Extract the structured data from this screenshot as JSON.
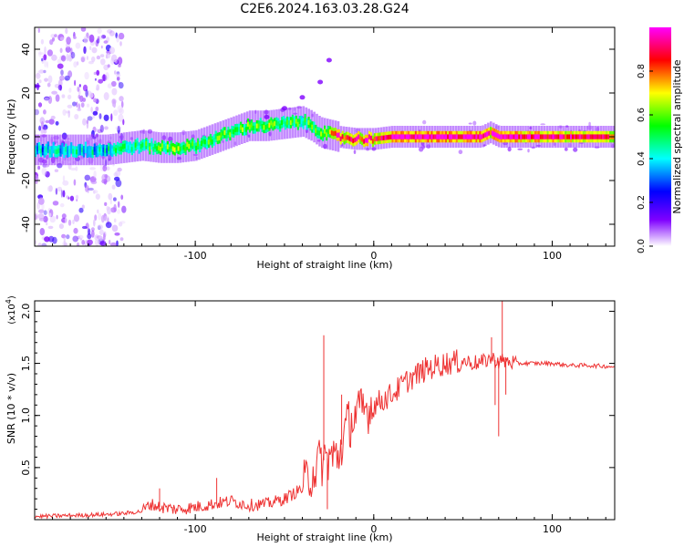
{
  "title": "C2E6.2024.163.03.28.G24",
  "chart_data": [
    {
      "type": "heatmap",
      "xlabel": "Height of straight line (km)",
      "ylabel": "Frequency (Hz)",
      "xlim": [
        -190,
        135
      ],
      "ylim": [
        -50,
        50
      ],
      "x_ticks": [
        -100,
        0,
        100
      ],
      "y_ticks": [
        -40,
        -20,
        0,
        20,
        40
      ],
      "grid": false,
      "colorbar": {
        "label": "Normalized spectral amplitude",
        "range": [
          0,
          1
        ],
        "ticks": [
          "0.0",
          "0.2",
          "0.4",
          "0.6",
          "0.8"
        ],
        "stops": [
          "#ffffff",
          "#7f00ff",
          "#0000ff",
          "#00ffff",
          "#00ff00",
          "#ffff00",
          "#ff0000",
          "#ff00ff"
        ]
      },
      "ridge": {
        "x": [
          -190,
          -170,
          -150,
          -140,
          -130,
          -120,
          -110,
          -100,
          -90,
          -80,
          -70,
          -60,
          -50,
          -40,
          -35,
          -30,
          -25,
          -20,
          -10,
          0,
          10,
          20,
          40,
          60,
          65,
          70,
          90,
          110,
          133
        ],
        "freq": [
          -6,
          -6,
          -6,
          -5,
          -4,
          -5,
          -5,
          -4,
          -1,
          2,
          5,
          5,
          6,
          7,
          5,
          2,
          1,
          0,
          -1,
          -1,
          0,
          0,
          0,
          0,
          2,
          0,
          0,
          0,
          0
        ],
        "amplitude": [
          0.35,
          0.4,
          0.4,
          0.45,
          0.5,
          0.55,
          0.6,
          0.5,
          0.55,
          0.6,
          0.55,
          0.6,
          0.55,
          0.5,
          0.55,
          0.6,
          0.7,
          0.9,
          0.85,
          0.9,
          0.95,
          1.0,
          1.0,
          1.0,
          0.9,
          1.0,
          0.95,
          0.9,
          0.85
        ]
      },
      "noise_region_x": [
        -190,
        -140
      ],
      "streak": {
        "x": [
          -70,
          -60,
          -50,
          -40,
          -30,
          -25
        ],
        "freq": [
          7,
          9,
          13,
          18,
          25,
          35
        ]
      }
    },
    {
      "type": "line",
      "xlabel": "Height of straight line (km)",
      "ylabel": "SNR (10 * v/v)",
      "y_multiplier": "(x10",
      "y_multiplier_exp": "4",
      "y_multiplier_close": ")",
      "xlim": [
        -190,
        135
      ],
      "ylim": [
        0,
        2.1
      ],
      "x_ticks": [
        -100,
        0,
        100
      ],
      "y_ticks": [
        "0.5",
        "1.0",
        "1.5",
        "2.0"
      ],
      "y_tick_values": [
        0.5,
        1.0,
        1.5,
        2.0
      ],
      "color": "#ee3333",
      "series": [
        {
          "x": [
            -190,
            -170,
            -150,
            -140,
            -130,
            -125,
            -120,
            -110,
            -100,
            -90,
            -80,
            -70,
            -60,
            -50,
            -45,
            -40,
            -35,
            -30,
            -25,
            -20,
            -15,
            -10,
            -5,
            0,
            10,
            20,
            30,
            40,
            50,
            60,
            65,
            70,
            75,
            80,
            90,
            100,
            110,
            120,
            133
          ],
          "y": [
            0.03,
            0.04,
            0.05,
            0.06,
            0.08,
            0.15,
            0.12,
            0.1,
            0.12,
            0.15,
            0.18,
            0.14,
            0.15,
            0.2,
            0.25,
            0.3,
            0.45,
            0.55,
            0.6,
            0.6,
            0.9,
            1.0,
            1.05,
            1.1,
            1.2,
            1.35,
            1.45,
            1.5,
            1.52,
            1.5,
            1.55,
            1.52,
            1.52,
            1.5,
            1.5,
            1.5,
            1.48,
            1.48,
            1.47
          ]
        }
      ],
      "spikes": [
        {
          "x": -28,
          "y": 1.77
        },
        {
          "x": -26,
          "y": 0.1
        },
        {
          "x": -18,
          "y": 1.2
        },
        {
          "x": 66,
          "y": 1.75
        },
        {
          "x": 68,
          "y": 1.1
        },
        {
          "x": 70,
          "y": 0.8
        },
        {
          "x": 72,
          "y": 2.1
        },
        {
          "x": 74,
          "y": 1.2
        },
        {
          "x": -120,
          "y": 0.3
        },
        {
          "x": -88,
          "y": 0.4
        }
      ]
    }
  ]
}
